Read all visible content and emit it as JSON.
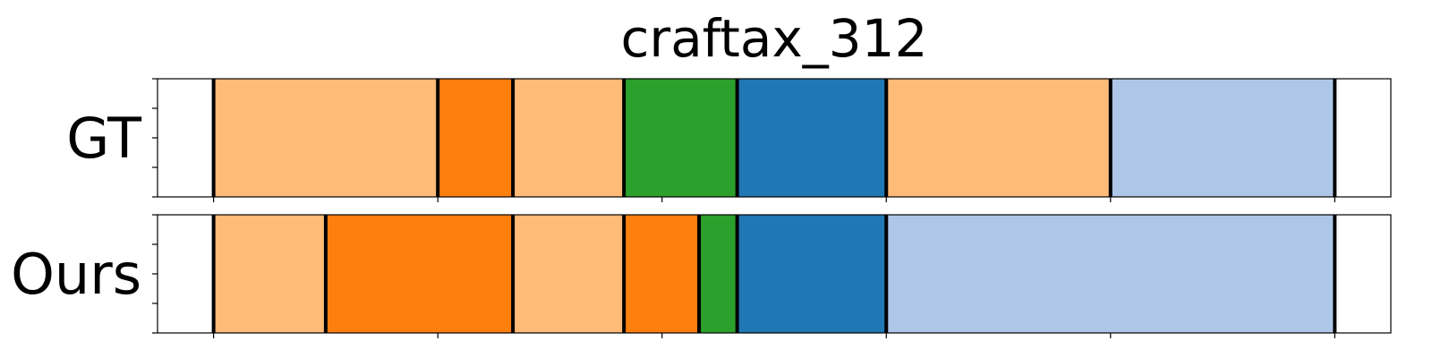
{
  "chart_data": {
    "type": "segmentation-bar",
    "title": "craftax_312",
    "xlim": [
      0,
      1100
    ],
    "x_ticks": [
      50,
      250,
      450,
      650,
      850,
      1050
    ],
    "rows": [
      {
        "label": "GT",
        "boundaries": [
          50,
          250,
          317,
          416,
          517,
          650,
          850,
          1050
        ],
        "segments": [
          {
            "start": 50,
            "end": 250,
            "color": "#ffbb78"
          },
          {
            "start": 250,
            "end": 317,
            "color": "#ff7f0e"
          },
          {
            "start": 317,
            "end": 416,
            "color": "#ffbb78"
          },
          {
            "start": 416,
            "end": 517,
            "color": "#2ca02c"
          },
          {
            "start": 517,
            "end": 650,
            "color": "#1f77b4"
          },
          {
            "start": 650,
            "end": 850,
            "color": "#ffbb78"
          },
          {
            "start": 850,
            "end": 1050,
            "color": "#aec7e8"
          }
        ]
      },
      {
        "label": "Ours",
        "boundaries": [
          50,
          150,
          317,
          416,
          483,
          517,
          650,
          1050
        ],
        "segments": [
          {
            "start": 50,
            "end": 150,
            "color": "#ffbb78"
          },
          {
            "start": 150,
            "end": 317,
            "color": "#ff7f0e"
          },
          {
            "start": 317,
            "end": 416,
            "color": "#ffbb78"
          },
          {
            "start": 416,
            "end": 483,
            "color": "#ff7f0e"
          },
          {
            "start": 483,
            "end": 517,
            "color": "#2ca02c"
          },
          {
            "start": 517,
            "end": 650,
            "color": "#1f77b4"
          },
          {
            "start": 650,
            "end": 1050,
            "color": "#aec7e8"
          }
        ]
      }
    ],
    "grid": false,
    "legend": "none"
  }
}
